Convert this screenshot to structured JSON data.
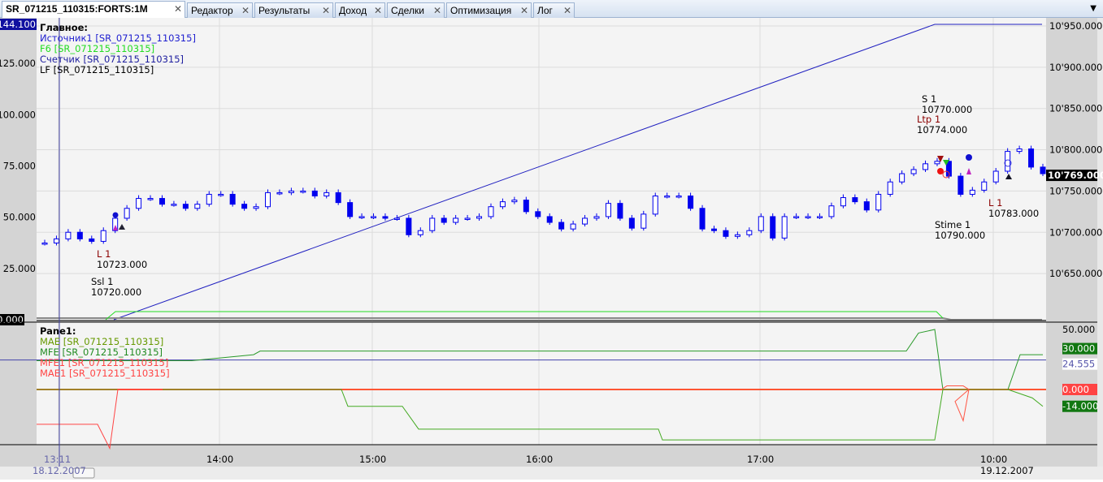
{
  "tabs": [
    {
      "label": "SR_071215_110315:FORTS:1M",
      "active": true
    },
    {
      "label": "Редактор"
    },
    {
      "label": "Результаты"
    },
    {
      "label": "Доход"
    },
    {
      "label": "Сделки"
    },
    {
      "label": "Оптимизация"
    },
    {
      "label": "Лог"
    }
  ],
  "main_pane": {
    "title": "Главное:",
    "legend": [
      {
        "label": "Источник1 [SR_071215_110315]",
        "color": "#2020d0"
      },
      {
        "label": "F6 [SR_071215_110315]",
        "color": "#22dd22"
      },
      {
        "label": "Счетчик [SR_071215_110315]",
        "color": "#2020a0"
      },
      {
        "label": "LF [SR_071215_110315]",
        "color": "#000000"
      }
    ],
    "left_axis": [
      "144.100",
      "125.000",
      "100.000",
      "75.000",
      "50.000",
      "25.000",
      "0.000"
    ],
    "right_axis": [
      "10'950.000",
      "10'900.000",
      "10'850.000",
      "10'800.000",
      "10'750.000",
      "10'700.000",
      "10'650.000"
    ],
    "last_price": "10'769.000",
    "closes": [
      10687,
      10692,
      10700,
      10692,
      10689,
      10702,
      10717,
      10729,
      10741,
      10741,
      10734,
      10734,
      10729,
      10734,
      10746,
      10746,
      10734,
      10729,
      10731,
      10748,
      10748,
      10750,
      10750,
      10744,
      10748,
      10736,
      10719,
      10719,
      10719,
      10717,
      10717,
      10697,
      10702,
      10717,
      10712,
      10717,
      10717,
      10719,
      10731,
      10737,
      10739,
      10725,
      10719,
      10712,
      10704,
      10710,
      10717,
      10719,
      10735,
      10717,
      10705,
      10722,
      10744,
      10744,
      10744,
      10729,
      10704,
      10702,
      10695,
      10697,
      10702,
      10719,
      10693,
      10719,
      10719,
      10719,
      10719,
      10732,
      10742,
      10737,
      10727,
      10746,
      10761,
      10771,
      10776,
      10783,
      10786,
      10768,
      10746,
      10751,
      10761,
      10774,
      10798,
      10801,
      10779,
      10771
    ],
    "annotations": [
      {
        "lines": [
          "L 1",
          "10723.000"
        ],
        "color": "#8b0000"
      },
      {
        "lines": [
          "Ssl 1",
          "10720.000"
        ],
        "color": "#000"
      },
      {
        "lines": [
          "S 1",
          "10770.000"
        ],
        "color": "#000"
      },
      {
        "lines": [
          "Ltp 1",
          "10774.000"
        ],
        "color": "#8b0000"
      },
      {
        "lines": [
          "Stime 1",
          "10790.000"
        ],
        "color": "#000"
      },
      {
        "lines": [
          "L 1",
          "10783.000"
        ],
        "color": "#8b0000"
      }
    ]
  },
  "lower_pane": {
    "title": "Pane1:",
    "legend": [
      {
        "label": "MAE [SR_071215_110315]",
        "color": "#669900"
      },
      {
        "label": "MFE [SR_071215_110315]",
        "color": "#228b22"
      },
      {
        "label": "MFE1 [SR_071215_110315]",
        "color": "#ff4444"
      },
      {
        "label": "MAE1 [SR_071215_110315]",
        "color": "#ff4444"
      }
    ],
    "right_axis": [
      "50.000",
      "30.000",
      "24.555",
      "0.000",
      "-14.000"
    ],
    "mfe_values": [
      24,
      24,
      29,
      32,
      32,
      47,
      50,
      0,
      0,
      29,
      29
    ],
    "mae_values": [
      0,
      0,
      -14,
      -14,
      -33,
      -33,
      -42,
      -42,
      0,
      0,
      -7,
      -14
    ],
    "mae1_values": [
      -29,
      -29,
      -49,
      0,
      0
    ],
    "mfe1_values": [
      0,
      3,
      3,
      0,
      -10,
      -26,
      0
    ],
    "reference_value": 24.555
  },
  "time_axis": {
    "ticks": [
      "13:11",
      "14:00",
      "15:00",
      "16:00",
      "17:00",
      "10:00"
    ],
    "dates": [
      "18.12.2007",
      "19.12.2007"
    ]
  },
  "colors": {
    "candle": "#0000ee",
    "panel_bg": "#f4f4f4",
    "axis_bg": "#d4d4d4"
  }
}
